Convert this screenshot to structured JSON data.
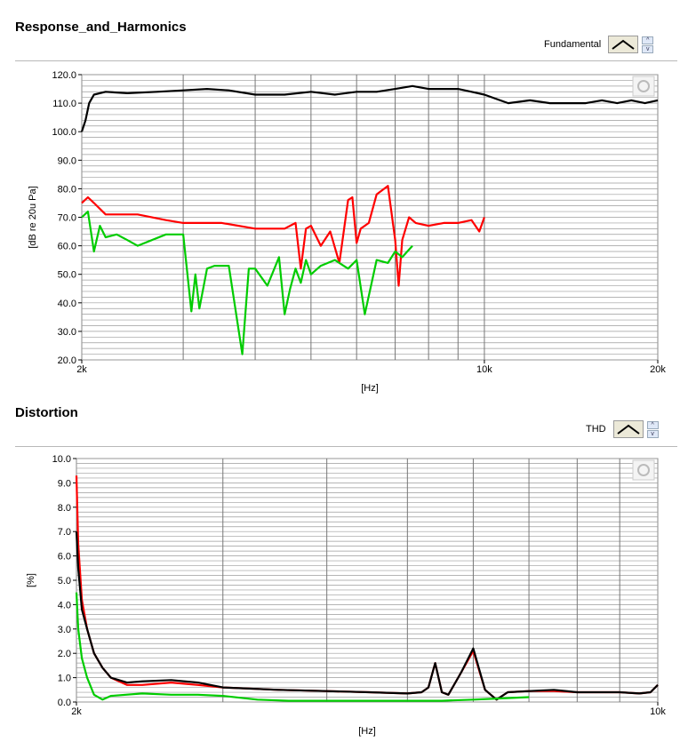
{
  "charts": {
    "top": {
      "title": "Response_and_Harmonics",
      "legend_label": "Fundamental",
      "spin_up": "^",
      "spin_down": "v"
    },
    "bottom": {
      "title": "Distortion",
      "legend_label": "THD",
      "spin_up": "^",
      "spin_down": "v"
    }
  },
  "chart_data": [
    {
      "type": "line",
      "title": "Response_and_Harmonics",
      "xlabel": "[Hz]",
      "ylabel": "[dB re 20u Pa]",
      "xscale": "log",
      "xlim": [
        2000,
        20000
      ],
      "ylim": [
        20,
        120
      ],
      "yticks": [
        20,
        30,
        40,
        50,
        60,
        70,
        80,
        90,
        100,
        110,
        120
      ],
      "ytick_labels": [
        "20.0",
        "30.0",
        "40.0",
        "50.0",
        "60.0",
        "70.0",
        "80.0",
        "90.0",
        "100.0",
        "110.0",
        "120.0"
      ],
      "xtick_labels": [
        {
          "x": 2000,
          "label": "2k"
        },
        {
          "x": 10000,
          "label": "10k"
        },
        {
          "x": 20000,
          "label": "20k"
        }
      ],
      "grid": true,
      "series": [
        {
          "color": "#000000",
          "x": [
            2000,
            2030,
            2060,
            2100,
            2200,
            2400,
            2700,
            3000,
            3300,
            3600,
            4000,
            4500,
            5000,
            5500,
            6000,
            6500,
            7000,
            7500,
            8000,
            8500,
            9000,
            9500,
            10000,
            11000,
            12000,
            13000,
            14000,
            15000,
            16000,
            17000,
            18000,
            19000,
            20000
          ],
          "y": [
            100,
            104,
            110,
            113,
            114,
            113.5,
            114,
            114.5,
            115,
            114.5,
            113,
            113,
            114,
            113,
            114,
            114,
            115,
            116,
            115,
            115,
            115,
            114,
            113,
            110,
            111,
            110,
            110,
            110,
            111,
            110,
            111,
            110,
            111
          ]
        },
        {
          "color": "#ff0000",
          "x": [
            2000,
            2050,
            2100,
            2200,
            2300,
            2500,
            2800,
            3000,
            3500,
            4000,
            4500,
            4700,
            4800,
            4900,
            5000,
            5200,
            5400,
            5600,
            5800,
            5900,
            6000,
            6100,
            6300,
            6500,
            6800,
            7000,
            7100,
            7200,
            7400,
            7600,
            8000,
            8500,
            9000,
            9500,
            9800,
            10000
          ],
          "y": [
            75,
            77,
            75,
            71,
            71,
            71,
            69,
            68,
            68,
            66,
            66,
            68,
            52,
            66,
            67,
            60,
            65,
            54,
            76,
            77,
            61,
            66,
            68,
            78,
            81,
            62,
            46,
            62,
            70,
            68,
            67,
            68,
            68,
            69,
            65,
            70
          ]
        },
        {
          "color": "#00cc00",
          "x": [
            2000,
            2050,
            2100,
            2150,
            2200,
            2300,
            2400,
            2500,
            2800,
            3000,
            3100,
            3150,
            3200,
            3300,
            3400,
            3600,
            3800,
            3900,
            4000,
            4200,
            4400,
            4500,
            4600,
            4700,
            4800,
            4900,
            5000,
            5200,
            5500,
            5800,
            6000,
            6200,
            6500,
            6800,
            7000,
            7200,
            7500
          ],
          "y": [
            70,
            72,
            58,
            67,
            63,
            64,
            62,
            60,
            64,
            64,
            37,
            50,
            38,
            52,
            53,
            53,
            22,
            52,
            52,
            46,
            56,
            36,
            45,
            52,
            47,
            55,
            50,
            53,
            55,
            52,
            55,
            36,
            55,
            54,
            58,
            56,
            60
          ]
        }
      ]
    },
    {
      "type": "line",
      "title": "Distortion",
      "xlabel": "[Hz]",
      "ylabel": "[%]",
      "xscale": "log",
      "xlim": [
        2000,
        10000
      ],
      "ylim": [
        0,
        10
      ],
      "yticks": [
        0,
        1,
        2,
        3,
        4,
        5,
        6,
        7,
        8,
        9,
        10
      ],
      "ytick_labels": [
        "0.0",
        "1.0",
        "2.0",
        "3.0",
        "4.0",
        "5.0",
        "6.0",
        "7.0",
        "8.0",
        "9.0",
        "10.0"
      ],
      "xtick_labels": [
        {
          "x": 2000,
          "label": "2k"
        },
        {
          "x": 10000,
          "label": "10k"
        }
      ],
      "grid": true,
      "series": [
        {
          "color": "#ff0000",
          "x": [
            2000,
            2010,
            2030,
            2060,
            2100,
            2150,
            2200,
            2300,
            2400,
            2600,
            2800,
            3000,
            3500,
            4000,
            4500,
            5000,
            5200,
            5300,
            5400,
            5500,
            5600,
            5800,
            6000,
            6200,
            6400,
            6600,
            7000,
            7500,
            8000,
            8500,
            9000,
            9500,
            9800,
            10000
          ],
          "y": [
            9.3,
            6.5,
            4.2,
            3.0,
            2.0,
            1.4,
            1.0,
            0.7,
            0.7,
            0.8,
            0.7,
            0.6,
            0.5,
            0.45,
            0.4,
            0.35,
            0.4,
            0.6,
            1.6,
            0.4,
            0.3,
            1.2,
            2.1,
            0.5,
            0.1,
            0.4,
            0.45,
            0.45,
            0.4,
            0.4,
            0.4,
            0.35,
            0.4,
            0.7
          ]
        },
        {
          "color": "#000000",
          "x": [
            2000,
            2010,
            2030,
            2060,
            2100,
            2150,
            2200,
            2300,
            2400,
            2600,
            2800,
            3000,
            3500,
            4000,
            4500,
            5000,
            5200,
            5300,
            5400,
            5500,
            5600,
            5800,
            6000,
            6200,
            6400,
            6600,
            7000,
            7500,
            8000,
            8500,
            9000,
            9500,
            9800,
            10000
          ],
          "y": [
            7.0,
            5.5,
            3.8,
            3.0,
            2.0,
            1.4,
            1.0,
            0.8,
            0.85,
            0.9,
            0.8,
            0.6,
            0.5,
            0.45,
            0.4,
            0.35,
            0.4,
            0.6,
            1.6,
            0.4,
            0.3,
            1.2,
            2.2,
            0.5,
            0.1,
            0.4,
            0.45,
            0.5,
            0.4,
            0.4,
            0.4,
            0.35,
            0.4,
            0.7
          ]
        },
        {
          "color": "#00cc00",
          "x": [
            2000,
            2010,
            2030,
            2060,
            2100,
            2150,
            2200,
            2400,
            2600,
            2800,
            3000,
            3300,
            3600,
            4000,
            4500,
            5000,
            5500,
            6000,
            6500,
            7000
          ],
          "y": [
            4.5,
            3.0,
            1.8,
            1.0,
            0.3,
            0.1,
            0.25,
            0.35,
            0.3,
            0.3,
            0.25,
            0.1,
            0.05,
            0.05,
            0.05,
            0.05,
            0.05,
            0.1,
            0.15,
            0.2
          ]
        }
      ]
    }
  ]
}
